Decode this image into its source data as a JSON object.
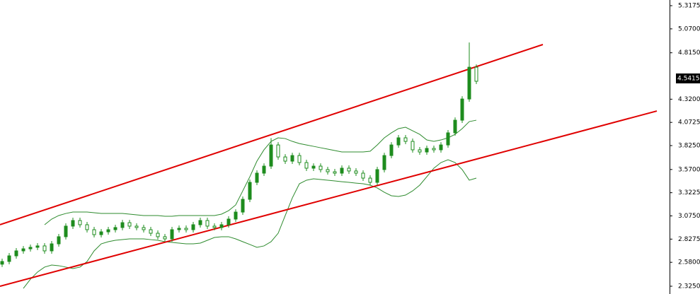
{
  "chart_data": {
    "type": "candlestick",
    "open": [
      2.56,
      2.589,
      2.649,
      2.702,
      2.724,
      2.74,
      2.755,
      2.702,
      2.777,
      2.853,
      2.966,
      3.026,
      2.981,
      2.928,
      2.875,
      2.905,
      2.928,
      2.951,
      3.003,
      2.966,
      2.951,
      2.928,
      2.89,
      2.853,
      2.83,
      2.928,
      2.943,
      2.928,
      2.981,
      3.026,
      2.966,
      2.951,
      2.981,
      3.041,
      3.116,
      3.252,
      3.433,
      3.531,
      3.606,
      3.832,
      3.704,
      3.659,
      3.719,
      3.644,
      3.584,
      3.606,
      3.569,
      3.546,
      3.531,
      3.584,
      3.554,
      3.531,
      3.478,
      3.433,
      3.569,
      3.719,
      3.832,
      3.908,
      3.87,
      3.78,
      3.757,
      3.795,
      3.78,
      3.832,
      3.961,
      4.096,
      4.322,
      4.661
    ],
    "high": [
      2.619,
      2.679,
      2.732,
      2.754,
      2.77,
      2.785,
      2.785,
      2.807,
      2.883,
      2.996,
      3.056,
      3.056,
      3.011,
      2.958,
      2.935,
      2.958,
      2.981,
      3.033,
      3.033,
      2.996,
      2.981,
      2.958,
      2.92,
      2.883,
      2.958,
      2.973,
      2.973,
      3.011,
      3.056,
      3.056,
      2.996,
      3.011,
      3.071,
      3.146,
      3.282,
      3.463,
      3.561,
      3.636,
      3.905,
      3.862,
      3.734,
      3.749,
      3.749,
      3.674,
      3.636,
      3.636,
      3.599,
      3.576,
      3.614,
      3.614,
      3.584,
      3.561,
      3.508,
      3.599,
      3.749,
      3.862,
      3.938,
      3.938,
      3.9,
      3.81,
      3.825,
      3.825,
      3.862,
      3.991,
      4.126,
      4.352,
      4.925,
      4.691
    ],
    "low": [
      2.53,
      2.559,
      2.619,
      2.672,
      2.694,
      2.71,
      2.672,
      2.672,
      2.747,
      2.823,
      2.936,
      2.951,
      2.898,
      2.845,
      2.845,
      2.875,
      2.898,
      2.921,
      2.936,
      2.921,
      2.898,
      2.86,
      2.823,
      2.8,
      2.8,
      2.898,
      2.898,
      2.898,
      2.951,
      2.936,
      2.921,
      2.921,
      2.951,
      3.011,
      3.086,
      3.222,
      3.403,
      3.501,
      3.576,
      3.674,
      3.629,
      3.629,
      3.614,
      3.554,
      3.554,
      3.539,
      3.516,
      3.501,
      3.501,
      3.524,
      3.501,
      3.448,
      3.403,
      3.403,
      3.539,
      3.689,
      3.802,
      3.84,
      3.75,
      3.727,
      3.727,
      3.75,
      3.75,
      3.802,
      3.931,
      4.066,
      4.292,
      4.481
    ],
    "close": [
      2.589,
      2.649,
      2.702,
      2.724,
      2.74,
      2.755,
      2.702,
      2.777,
      2.853,
      2.966,
      3.026,
      2.981,
      2.928,
      2.875,
      2.905,
      2.928,
      2.951,
      3.003,
      2.966,
      2.951,
      2.928,
      2.89,
      2.853,
      2.83,
      2.928,
      2.943,
      2.928,
      2.981,
      3.026,
      2.966,
      2.951,
      2.981,
      3.041,
      3.116,
      3.252,
      3.433,
      3.531,
      3.606,
      3.832,
      3.704,
      3.659,
      3.719,
      3.644,
      3.584,
      3.606,
      3.569,
      3.546,
      3.531,
      3.584,
      3.554,
      3.531,
      3.478,
      3.433,
      3.569,
      3.719,
      3.832,
      3.908,
      3.87,
      3.78,
      3.757,
      3.795,
      3.78,
      3.832,
      3.961,
      4.096,
      4.322,
      4.661,
      4.511
    ],
    "color": "#1e8c1e",
    "series": [
      {
        "color": "#2e8b2e",
        "values": [
          null,
          null,
          null,
          null,
          null,
          null,
          2.981,
          3.041,
          3.079,
          3.101,
          3.116,
          3.116,
          3.116,
          3.109,
          3.101,
          3.101,
          3.101,
          3.101,
          3.094,
          3.086,
          3.079,
          3.079,
          3.079,
          3.071,
          3.071,
          3.079,
          3.079,
          3.079,
          3.079,
          3.079,
          3.079,
          3.094,
          3.131,
          3.192,
          3.342,
          3.493,
          3.659,
          3.78,
          3.87,
          3.908,
          3.9,
          3.87,
          3.847,
          3.832,
          3.817,
          3.802,
          3.787,
          3.772,
          3.757,
          3.757,
          3.757,
          3.757,
          3.765,
          3.832,
          3.908,
          3.961,
          4.006,
          4.021,
          3.983,
          3.945,
          3.885,
          3.87,
          3.885,
          3.908,
          3.945,
          4.006,
          4.081,
          4.096
        ]
      },
      {
        "color": "#2e8b2e",
        "values": [
          null,
          null,
          null,
          2.302,
          2.4,
          2.476,
          2.529,
          2.551,
          2.544,
          2.529,
          2.513,
          2.529,
          2.589,
          2.702,
          2.777,
          2.8,
          2.815,
          2.822,
          2.83,
          2.83,
          2.83,
          2.822,
          2.815,
          2.8,
          2.792,
          2.785,
          2.777,
          2.777,
          2.785,
          2.815,
          2.845,
          2.853,
          2.853,
          2.83,
          2.8,
          2.77,
          2.74,
          2.755,
          2.8,
          2.89,
          3.079,
          3.267,
          3.418,
          3.456,
          3.471,
          3.463,
          3.456,
          3.448,
          3.44,
          3.433,
          3.425,
          3.418,
          3.403,
          3.373,
          3.327,
          3.29,
          3.282,
          3.297,
          3.342,
          3.403,
          3.493,
          3.584,
          3.644,
          3.674,
          3.644,
          3.569,
          3.456,
          3.478
        ]
      }
    ],
    "trendlines": [
      {
        "color": "#e00000",
        "x": [
          -0.3,
          76.4
        ],
        "values": [
          2.981,
          4.903
        ]
      },
      {
        "color": "#e00000",
        "x": [
          -0.3,
          92.5
        ],
        "values": [
          2.325,
          4.194
        ]
      }
    ],
    "last_price": 4.5415,
    "xlim": [
      -0.3,
      94.2
    ],
    "ylim": [
      2.242,
      5.378
    ],
    "yticks": [
      5.3175,
      {
        "value": 5.07,
        "label": "5.0700"
      },
      {
        "value": 4.815,
        "label": "4.8150"
      },
      {
        "value": 4.32,
        "label": "4.3200"
      },
      4.0725,
      {
        "value": 3.825,
        "label": "3.8250"
      },
      {
        "value": 3.57,
        "label": "3.5700"
      },
      3.3225,
      {
        "value": 3.075,
        "label": "3.0750"
      },
      2.8275,
      {
        "value": 2.58,
        "label": "2.5800"
      },
      {
        "value": 2.325,
        "label": "2.3250"
      }
    ]
  }
}
